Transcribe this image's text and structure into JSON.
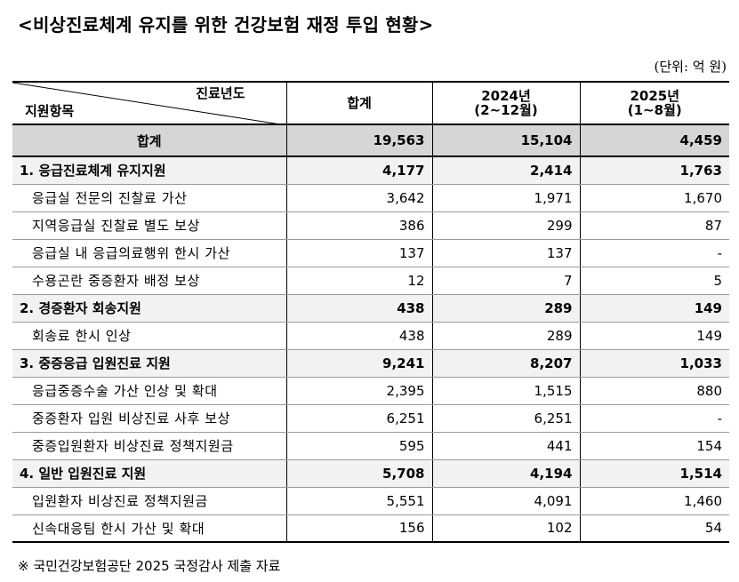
{
  "title": "<비상진료체계 유지를 위한 건강보험 재정 투입 현황>",
  "unit": "(단위: 억 원)",
  "header": {
    "diag_top": "진료년도",
    "diag_bottom": "지원항목",
    "col_total": "합계",
    "col_2024_year": "2024년",
    "col_2024_period": "(2~12월)",
    "col_2025_year": "2025년",
    "col_2025_period": "(1~8월)"
  },
  "total_row": {
    "label": "합계",
    "total": "19,563",
    "y2024": "15,104",
    "y2025": "4,459"
  },
  "rows": [
    {
      "label": "1. 응급진료체계 유지지원",
      "total": "4,177",
      "y2024": "2,414",
      "y2025": "1,763"
    },
    {
      "label": "응급실 전문의 진찰료 가산",
      "total": "3,642",
      "y2024": "1,971",
      "y2025": "1,670"
    },
    {
      "label": "지역응급실 진찰료 별도 보상",
      "total": "386",
      "y2024": "299",
      "y2025": "87"
    },
    {
      "label": "응급실 내 응급의료행위 한시 가산",
      "total": "137",
      "y2024": "137",
      "y2025": "-"
    },
    {
      "label": "수용곤란 중증환자 배정 보상",
      "total": "12",
      "y2024": "7",
      "y2025": "5"
    },
    {
      "label": "2. 경증환자 회송지원",
      "total": "438",
      "y2024": "289",
      "y2025": "149"
    },
    {
      "label": "회송료 한시 인상",
      "total": "438",
      "y2024": "289",
      "y2025": "149"
    },
    {
      "label": "3. 중증응급 입원진료 지원",
      "total": "9,241",
      "y2024": "8,207",
      "y2025": "1,033"
    },
    {
      "label": "응급중증수술 가산 인상 및 확대",
      "total": "2,395",
      "y2024": "1,515",
      "y2025": "880"
    },
    {
      "label": "중증환자 입원 비상진료 사후 보상",
      "total": "6,251",
      "y2024": "6,251",
      "y2025": "-"
    },
    {
      "label": "중증입원환자 비상진료 정책지원금",
      "total": "595",
      "y2024": "441",
      "y2025": "154"
    },
    {
      "label": "4. 일반 입원진료 지원",
      "total": "5,708",
      "y2024": "4,194",
      "y2025": "1,514"
    },
    {
      "label": "입원환자 비상진료 정책지원금",
      "total": "5,551",
      "y2024": "4,091",
      "y2025": "1,460"
    },
    {
      "label": "신속대응팀 한시 가산 및 확대",
      "total": "156",
      "y2024": "102",
      "y2025": "54"
    }
  ],
  "footnote": "※ 국민건강보험공단 2025 국정감사 제출 자료"
}
